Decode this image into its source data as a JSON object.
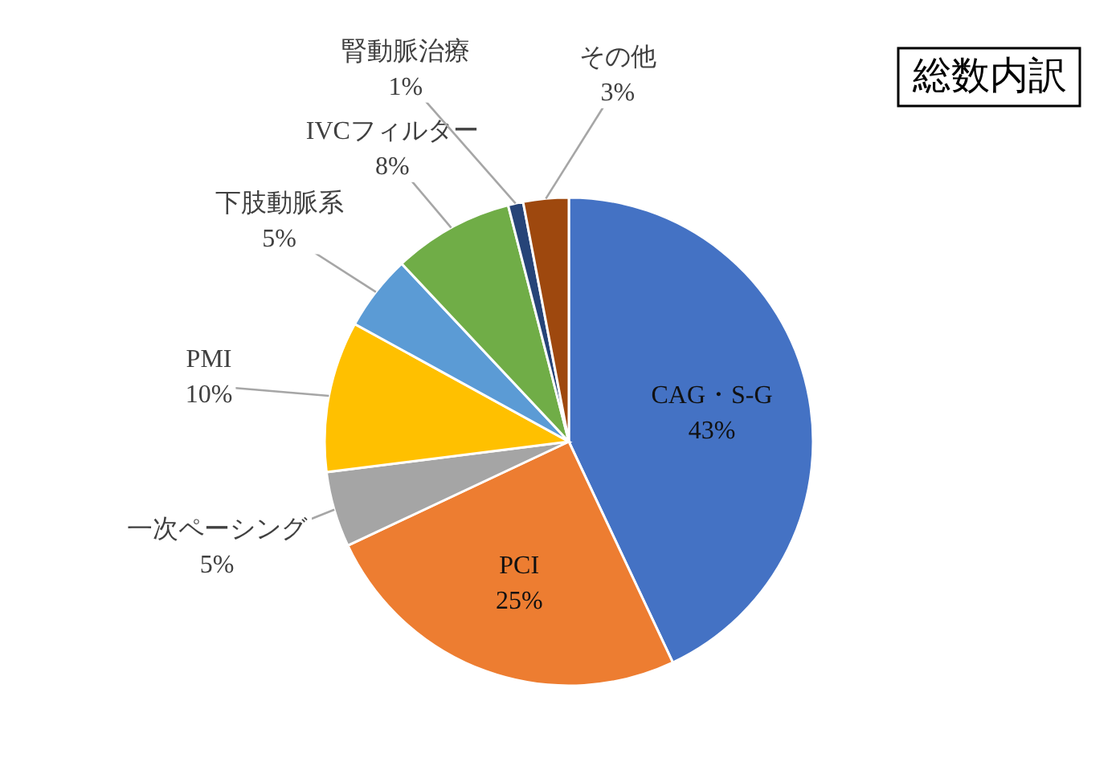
{
  "chart_data": {
    "type": "pie",
    "title": "総数内訳",
    "categories": [
      "CAG・S-G",
      "PCI",
      "一次ペーシング",
      "PMI",
      "下肢動脈系",
      "IVCフィルター",
      "腎動脈治療",
      "その他"
    ],
    "values": [
      43,
      25,
      5,
      10,
      5,
      8,
      1,
      3
    ],
    "colors": [
      "#4472c4",
      "#ed7d31",
      "#a5a5a5",
      "#ffc000",
      "#5b9bd5",
      "#70ad47",
      "#264478",
      "#9e480e"
    ],
    "value_labels": [
      "43%",
      "25%",
      "5%",
      "10%",
      "5%",
      "8%",
      "1%",
      "3%"
    ],
    "legend": false
  }
}
